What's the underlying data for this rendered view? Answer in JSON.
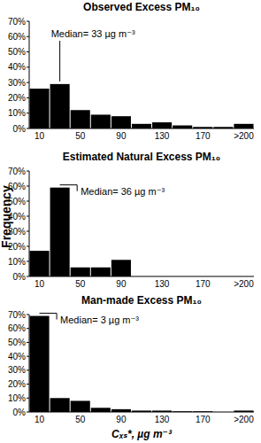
{
  "chart_data": [
    {
      "type": "bar",
      "title": "Observed Excess PM₁₀",
      "categories": [
        "10",
        null,
        "50",
        null,
        "90",
        null,
        "130",
        null,
        "170",
        null,
        ">200"
      ],
      "values": [
        26,
        29,
        12,
        9,
        8,
        3,
        4,
        2,
        1,
        1,
        3
      ],
      "color": "#000000",
      "ylim": [
        0,
        70
      ],
      "yticks": [
        {
          "value": 0,
          "label": "0%"
        },
        {
          "value": 10,
          "label": "10%"
        },
        {
          "value": 20,
          "label": "20%"
        },
        {
          "value": 30,
          "label": "30%"
        },
        {
          "value": 40,
          "label": "40%"
        },
        {
          "value": 50,
          "label": "50%"
        },
        {
          "value": 60,
          "label": "60%"
        },
        {
          "value": 70,
          "label": "70%"
        }
      ],
      "grid": false,
      "annotations": [
        "Median= 33 µg m⁻³"
      ]
    },
    {
      "type": "bar",
      "title": "Estimated Natural Excess PM₁₀",
      "categories": [
        "10",
        null,
        "50",
        null,
        "90",
        null,
        "130",
        null,
        "170",
        null,
        ">200"
      ],
      "values": [
        17,
        59,
        6,
        6,
        11,
        0,
        0,
        0,
        0,
        0,
        0
      ],
      "color": "#000000",
      "ylim": [
        0,
        70
      ],
      "yticks": [
        {
          "value": 0,
          "label": "0%"
        },
        {
          "value": 10,
          "label": "10%"
        },
        {
          "value": 20,
          "label": "20%"
        },
        {
          "value": 30,
          "label": "30%"
        },
        {
          "value": 40,
          "label": "40%"
        },
        {
          "value": 50,
          "label": "50%"
        },
        {
          "value": 60,
          "label": "60%"
        },
        {
          "value": 70,
          "label": "70%"
        }
      ],
      "grid": false,
      "y_label": "Frequency",
      "annotations": [
        "Median= 36 µg m⁻³"
      ]
    },
    {
      "type": "bar",
      "title": "Man-made Excess PM₁₀",
      "categories": [
        "10",
        null,
        "50",
        null,
        "90",
        null,
        "130",
        null,
        "170",
        null,
        ">200"
      ],
      "values": [
        69,
        10,
        8,
        3,
        2,
        1,
        1,
        0.5,
        0.5,
        0,
        1
      ],
      "color": "#000000",
      "ylim": [
        0,
        70
      ],
      "yticks": [
        {
          "value": 0,
          "label": "0%"
        },
        {
          "value": 10,
          "label": "10%"
        },
        {
          "value": 20,
          "label": "20%"
        },
        {
          "value": 30,
          "label": "30%"
        },
        {
          "value": 40,
          "label": "40%"
        },
        {
          "value": 50,
          "label": "50%"
        },
        {
          "value": 60,
          "label": "60%"
        },
        {
          "value": 70,
          "label": "70%"
        }
      ],
      "grid": false,
      "x_label": "Cₓₛ*, µg m⁻³",
      "annotations": [
        "Median= 3 µg m⁻³"
      ]
    }
  ]
}
